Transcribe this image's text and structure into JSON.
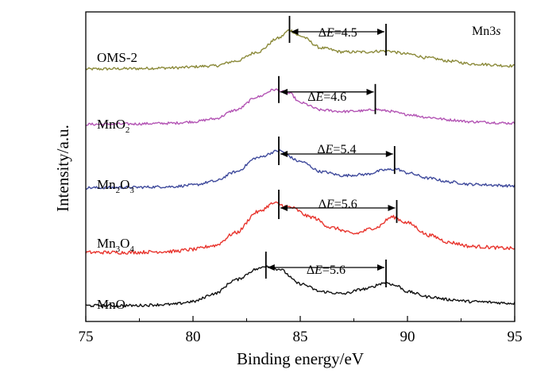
{
  "chart_data": {
    "type": "line",
    "xlabel": "Binding energy/eV",
    "ylabel": "Intensity/a.u.",
    "xlim": [
      75,
      95
    ],
    "xticks": [
      "75",
      "80",
      "85",
      "90",
      "95"
    ],
    "y_ticks_shown": false,
    "grid": false,
    "legend": "none",
    "corner_label": {
      "main": "Mn3",
      "italic": "s"
    },
    "series": [
      {
        "name": "OMS-2",
        "label_parts": [
          {
            "text": "OMS-2",
            "sub": false
          }
        ],
        "color": "#8b8a3a",
        "peaks": [
          84.5,
          89.0
        ],
        "delta_e": {
          "prefix": "Δ",
          "symbol": "E",
          "value": "=4.5"
        },
        "profile": [
          [
            75,
            0.02
          ],
          [
            77,
            0.03
          ],
          [
            79,
            0.05
          ],
          [
            81,
            0.1
          ],
          [
            82,
            0.22
          ],
          [
            83,
            0.45
          ],
          [
            84,
            0.8
          ],
          [
            84.5,
            1.0
          ],
          [
            85,
            0.85
          ],
          [
            86,
            0.55
          ],
          [
            87,
            0.45
          ],
          [
            88,
            0.45
          ],
          [
            89,
            0.48
          ],
          [
            90,
            0.4
          ],
          [
            91,
            0.3
          ],
          [
            92,
            0.22
          ],
          [
            93,
            0.15
          ],
          [
            95,
            0.1
          ]
        ]
      },
      {
        "name": "MnO2",
        "label_parts": [
          {
            "text": "MnO",
            "sub": false
          },
          {
            "text": "2",
            "sub": true
          }
        ],
        "color": "#b354b4",
        "peaks": [
          84.0,
          88.5
        ],
        "delta_e": {
          "prefix": "Δ",
          "symbol": "E",
          "value": "=4.6"
        },
        "profile": [
          [
            75,
            0.03
          ],
          [
            77,
            0.04
          ],
          [
            79,
            0.06
          ],
          [
            80,
            0.1
          ],
          [
            81,
            0.18
          ],
          [
            82,
            0.42
          ],
          [
            83,
            0.78
          ],
          [
            83.8,
            0.98
          ],
          [
            84.5,
            0.88
          ],
          [
            85,
            0.62
          ],
          [
            86,
            0.42
          ],
          [
            87,
            0.38
          ],
          [
            88,
            0.4
          ],
          [
            88.5,
            0.44
          ],
          [
            89,
            0.4
          ],
          [
            90,
            0.3
          ],
          [
            91,
            0.22
          ],
          [
            92,
            0.15
          ],
          [
            93,
            0.1
          ],
          [
            95,
            0.06
          ]
        ]
      },
      {
        "name": "Mn2O3",
        "label_parts": [
          {
            "text": "Mn",
            "sub": false
          },
          {
            "text": "2",
            "sub": true
          },
          {
            "text": "O",
            "sub": false
          },
          {
            "text": "3",
            "sub": true
          }
        ],
        "color": "#3f4a9c",
        "peaks": [
          84.0,
          89.4
        ],
        "delta_e": {
          "prefix": "Δ",
          "symbol": "E",
          "value": "=5.4"
        },
        "profile": [
          [
            75,
            0.03
          ],
          [
            77,
            0.04
          ],
          [
            79,
            0.06
          ],
          [
            80,
            0.1
          ],
          [
            81,
            0.2
          ],
          [
            82,
            0.45
          ],
          [
            83,
            0.82
          ],
          [
            84,
            1.0
          ],
          [
            85,
            0.72
          ],
          [
            86,
            0.45
          ],
          [
            87,
            0.35
          ],
          [
            88,
            0.38
          ],
          [
            89,
            0.5
          ],
          [
            89.5,
            0.52
          ],
          [
            90,
            0.42
          ],
          [
            91,
            0.28
          ],
          [
            92,
            0.18
          ],
          [
            93,
            0.12
          ],
          [
            95,
            0.08
          ]
        ]
      },
      {
        "name": "Mn3O4",
        "label_parts": [
          {
            "text": "Mn",
            "sub": false
          },
          {
            "text": "3",
            "sub": true
          },
          {
            "text": "O",
            "sub": false
          },
          {
            "text": "4",
            "sub": true
          }
        ],
        "color": "#e8352e",
        "peaks": [
          84.0,
          89.5
        ],
        "delta_e": {
          "prefix": "Δ",
          "symbol": "E",
          "value": "=5.6"
        },
        "profile": [
          [
            75,
            0.0
          ],
          [
            77,
            0.0
          ],
          [
            79,
            0.02
          ],
          [
            80,
            0.06
          ],
          [
            81,
            0.14
          ],
          [
            82,
            0.4
          ],
          [
            83,
            0.82
          ],
          [
            83.8,
            1.0
          ],
          [
            84.5,
            0.92
          ],
          [
            85.5,
            0.72
          ],
          [
            86.5,
            0.5
          ],
          [
            87.5,
            0.38
          ],
          [
            88.5,
            0.5
          ],
          [
            89.3,
            0.72
          ],
          [
            90,
            0.6
          ],
          [
            91,
            0.35
          ],
          [
            92,
            0.2
          ],
          [
            93,
            0.12
          ],
          [
            95,
            0.08
          ]
        ]
      },
      {
        "name": "MnO",
        "label_parts": [
          {
            "text": "MnO",
            "sub": false
          }
        ],
        "color": "#111111",
        "peaks": [
          83.4,
          89.0
        ],
        "delta_e": {
          "prefix": "Δ",
          "symbol": "E",
          "value": "=5.6"
        },
        "profile": [
          [
            75,
            0.0
          ],
          [
            77,
            0.0
          ],
          [
            79,
            0.03
          ],
          [
            80,
            0.1
          ],
          [
            81,
            0.3
          ],
          [
            82,
            0.65
          ],
          [
            83,
            0.92
          ],
          [
            83.4,
            1.0
          ],
          [
            84,
            0.92
          ],
          [
            85,
            0.55
          ],
          [
            86,
            0.35
          ],
          [
            87,
            0.3
          ],
          [
            88,
            0.42
          ],
          [
            89,
            0.58
          ],
          [
            89.5,
            0.5
          ],
          [
            90,
            0.35
          ],
          [
            91,
            0.22
          ],
          [
            92,
            0.15
          ],
          [
            93,
            0.1
          ],
          [
            95,
            0.06
          ]
        ]
      }
    ]
  }
}
